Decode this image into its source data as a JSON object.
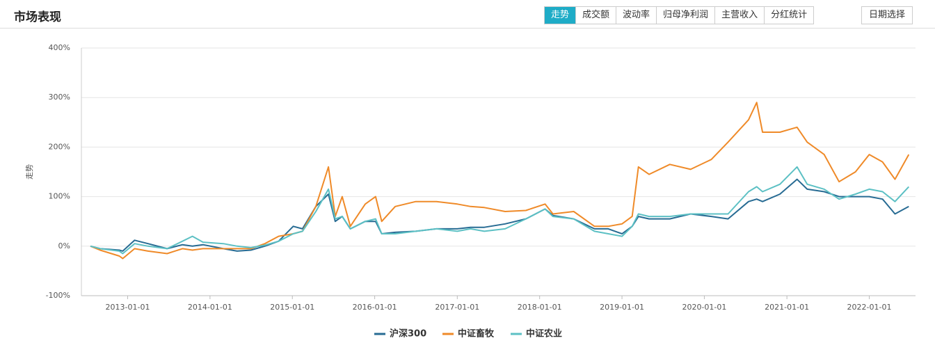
{
  "header": {
    "title": "市场表现"
  },
  "tabs": [
    "走势",
    "成交额",
    "波动率",
    "归母净利润",
    "主营收入",
    "分红统计"
  ],
  "date_button": "日期选择",
  "chart_data": {
    "type": "line",
    "ylabel": "走势",
    "x": [
      "2012-07-20",
      "2012-09-01",
      "2012-11-25",
      "2012-12-10",
      "2013-02-01",
      "2013-04-01",
      "2013-06-25",
      "2013-09-01",
      "2013-10-15",
      "2013-12-01",
      "2014-03-01",
      "2014-05-01",
      "2014-07-01",
      "2014-09-01",
      "2014-11-01",
      "2015-01-05",
      "2015-02-15",
      "2015-04-15",
      "2015-06-10",
      "2015-07-10",
      "2015-08-10",
      "2015-09-15",
      "2015-11-20",
      "2016-01-05",
      "2016-02-01",
      "2016-04-01",
      "2016-07-01",
      "2016-10-01",
      "2017-01-01",
      "2017-03-01",
      "2017-05-01",
      "2017-08-01",
      "2017-11-01",
      "2018-01-25",
      "2018-03-01",
      "2018-06-01",
      "2018-09-01",
      "2018-11-01",
      "2019-01-01",
      "2019-02-15",
      "2019-03-15",
      "2019-05-01",
      "2019-08-01",
      "2019-11-01",
      "2020-02-01",
      "2020-04-15",
      "2020-07-15",
      "2020-08-20",
      "2020-09-15",
      "2020-12-01",
      "2021-02-15",
      "2021-04-01",
      "2021-06-15",
      "2021-08-20",
      "2021-11-01",
      "2022-01-01",
      "2022-03-01",
      "2022-04-25",
      "2022-06-25"
    ],
    "series": [
      {
        "name": "沪深300",
        "color": "#276b93",
        "values": [
          0,
          -5,
          -8,
          -10,
          12,
          5,
          -5,
          3,
          0,
          3,
          -5,
          -10,
          -8,
          0,
          10,
          40,
          35,
          80,
          105,
          50,
          60,
          35,
          50,
          50,
          25,
          28,
          30,
          35,
          35,
          38,
          38,
          45,
          55,
          75,
          62,
          55,
          35,
          35,
          25,
          40,
          60,
          55,
          55,
          65,
          60,
          55,
          90,
          95,
          90,
          105,
          135,
          115,
          110,
          100,
          100,
          100,
          95,
          65,
          80
        ]
      },
      {
        "name": "中证畜牧",
        "color": "#ef8a28",
        "values": [
          0,
          -8,
          -20,
          -25,
          -5,
          -10,
          -15,
          -5,
          -8,
          -5,
          -5,
          -5,
          -5,
          5,
          20,
          25,
          30,
          80,
          160,
          60,
          100,
          40,
          85,
          100,
          50,
          80,
          90,
          90,
          85,
          80,
          78,
          70,
          72,
          85,
          65,
          70,
          40,
          40,
          45,
          60,
          160,
          145,
          165,
          155,
          175,
          210,
          255,
          290,
          230,
          230,
          240,
          210,
          185,
          130,
          150,
          185,
          170,
          135,
          185
        ]
      },
      {
        "name": "中证农业",
        "color": "#5cc0c4",
        "values": [
          0,
          -5,
          -10,
          -15,
          5,
          0,
          -5,
          10,
          20,
          8,
          5,
          0,
          -3,
          2,
          10,
          25,
          30,
          70,
          115,
          55,
          60,
          35,
          50,
          55,
          25,
          25,
          30,
          35,
          30,
          35,
          30,
          35,
          55,
          75,
          60,
          55,
          30,
          25,
          20,
          40,
          65,
          60,
          60,
          65,
          65,
          65,
          110,
          120,
          110,
          125,
          160,
          125,
          115,
          95,
          105,
          115,
          110,
          90,
          120
        ]
      }
    ],
    "xlim": [
      "2012-06-10",
      "2022-07-25"
    ],
    "xticks": [
      "2013-01-01",
      "2014-01-01",
      "2015-01-01",
      "2016-01-01",
      "2017-01-01",
      "2018-01-01",
      "2019-01-01",
      "2020-01-01",
      "2021-01-01",
      "2022-01-01"
    ],
    "ylim": [
      -100,
      400
    ],
    "yticks": [
      {
        "value": -100,
        "label": "-100%"
      },
      {
        "value": 0,
        "label": "0%"
      },
      {
        "value": 100,
        "label": "100%"
      },
      {
        "value": 200,
        "label": "200%"
      },
      {
        "value": 300,
        "label": "300%"
      },
      {
        "value": 400,
        "label": "400%"
      }
    ],
    "grid": true,
    "legend": "bottom"
  }
}
